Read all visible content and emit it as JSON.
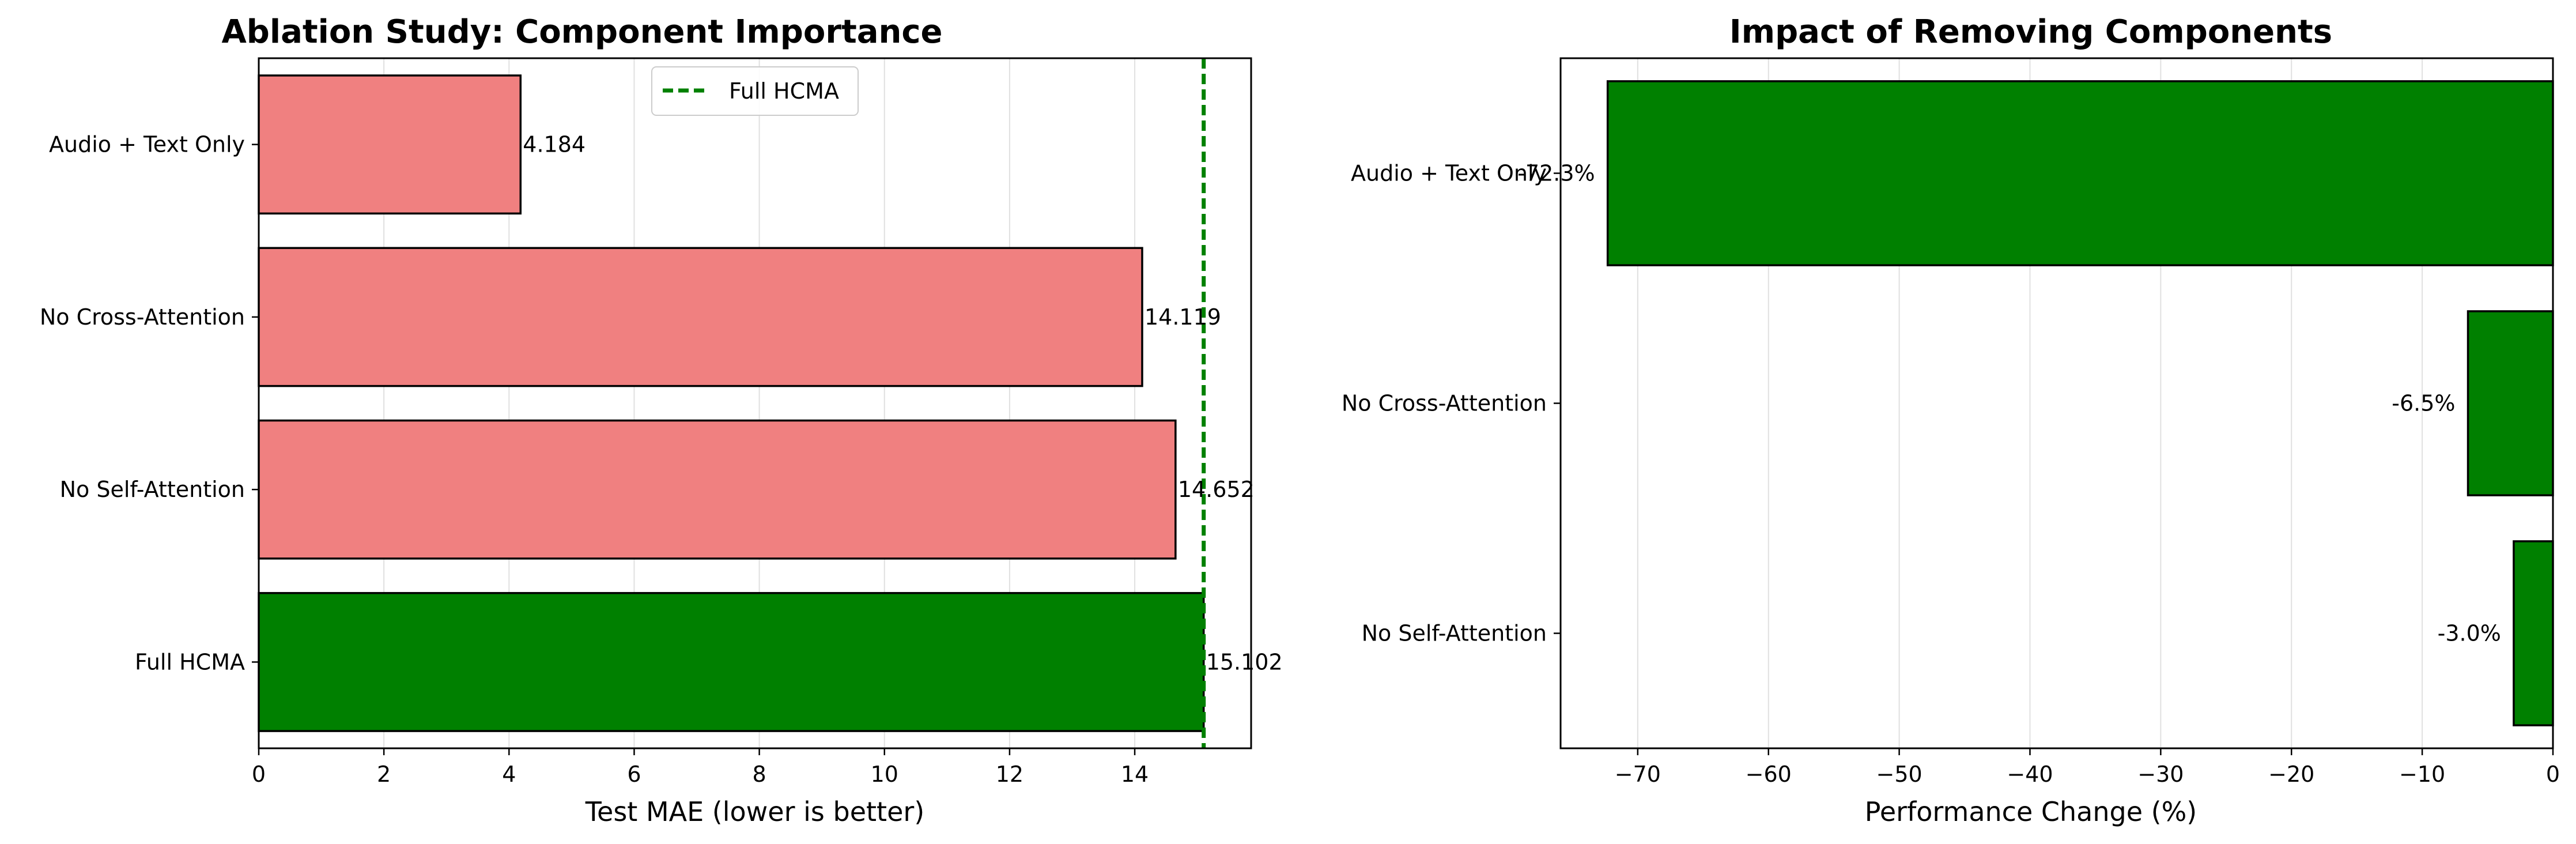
{
  "chart_data": [
    {
      "type": "bar",
      "orientation": "horizontal",
      "title": "Ablation Study: Component Importance",
      "xlabel": "Test MAE (lower is better)",
      "ylabel": "",
      "xlim": [
        0,
        15.86
      ],
      "xticks": [
        0,
        2,
        4,
        6,
        8,
        10,
        12,
        14
      ],
      "xtick_labels": [
        "0",
        "2",
        "4",
        "6",
        "8",
        "10",
        "12",
        "14"
      ],
      "categories": [
        "Full HCMA",
        "No Self-Attention",
        "No Cross-Attention",
        "Audio + Text Only"
      ],
      "values": [
        15.102,
        14.652,
        14.119,
        4.184
      ],
      "value_labels": [
        "15.102",
        "14.652",
        "14.119",
        "4.184"
      ],
      "bar_colors": [
        "#008000",
        "#f08080",
        "#f08080",
        "#f08080"
      ],
      "grid": "x",
      "reference_line": {
        "value": 15.102,
        "label": "Full HCMA",
        "color": "#008000",
        "style": "dashed"
      },
      "legend": {
        "placement": "top-center",
        "entries": [
          "Full HCMA"
        ]
      }
    },
    {
      "type": "bar",
      "orientation": "horizontal",
      "title": "Impact of Removing Components",
      "xlabel": "Performance Change (%)",
      "ylabel": "",
      "xlim": [
        -75.9,
        0
      ],
      "xticks": [
        -70,
        -60,
        -50,
        -40,
        -30,
        -20,
        -10,
        0
      ],
      "xtick_labels": [
        "−70",
        "−60",
        "−50",
        "−40",
        "−30",
        "−20",
        "−10",
        "0"
      ],
      "categories": [
        "No Self-Attention",
        "No Cross-Attention",
        "Audio + Text Only"
      ],
      "values": [
        -3.0,
        -6.5,
        -72.3
      ],
      "value_labels": [
        "-3.0%",
        "-6.5%",
        "-72.3%"
      ],
      "bar_colors": [
        "#008000",
        "#008000",
        "#008000"
      ],
      "grid": "x"
    }
  ]
}
